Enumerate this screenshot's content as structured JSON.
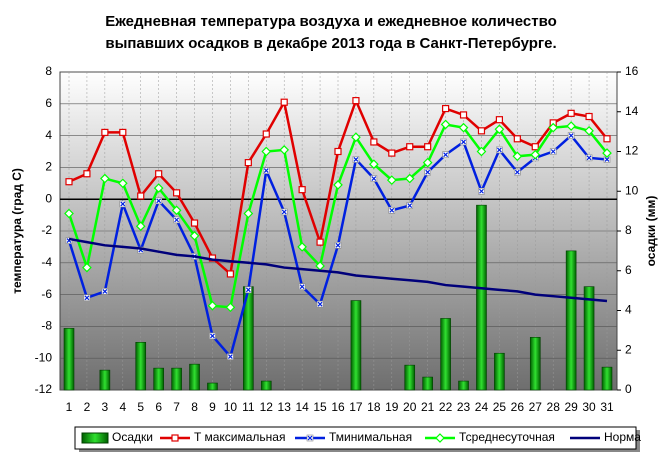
{
  "chart_data": {
    "type": "line",
    "title": [
      "Ежедневная температура воздуха и ежедневное количество",
      "выпавших осадков в декабре 2013 года в Санкт-Петербурге."
    ],
    "y_label": "температура (град С)",
    "y2_label": "осадки (мм)",
    "categories": [
      "1",
      "2",
      "3",
      "4",
      "5",
      "6",
      "7",
      "8",
      "9",
      "10",
      "11",
      "12",
      "13",
      "14",
      "15",
      "16",
      "17",
      "18",
      "19",
      "20",
      "21",
      "22",
      "23",
      "24",
      "25",
      "26",
      "27",
      "28",
      "29",
      "30",
      "31"
    ],
    "ylim": [
      -12,
      8
    ],
    "yticks": [
      -12,
      -10,
      -8,
      -6,
      -4,
      -2,
      0,
      2,
      4,
      6,
      8
    ],
    "y2lim": [
      0,
      16
    ],
    "y2ticks": [
      0,
      2,
      4,
      6,
      8,
      10,
      12,
      14,
      16
    ],
    "grid": true,
    "legend": "bottom",
    "series": [
      {
        "name": "Осадки",
        "type": "bar",
        "axis": "y2",
        "color": "#00b000",
        "values": [
          3.1,
          0,
          1.0,
          0,
          2.4,
          1.1,
          1.1,
          1.3,
          0.35,
          0,
          5.2,
          0.45,
          0,
          0,
          0,
          0,
          4.5,
          0,
          0,
          1.25,
          0.65,
          3.6,
          0.45,
          9.3,
          1.85,
          0,
          2.65,
          0,
          7.0,
          5.2,
          1.15
        ]
      },
      {
        "name": "T максимальная",
        "color": "#e00000",
        "marker": "square",
        "values": [
          1.1,
          1.6,
          4.2,
          4.2,
          0.2,
          1.6,
          0.4,
          -1.5,
          -3.7,
          -4.7,
          2.3,
          4.1,
          6.1,
          0.6,
          -2.7,
          3.0,
          6.2,
          3.6,
          2.9,
          3.3,
          3.3,
          5.7,
          5.3,
          4.3,
          5.0,
          3.8,
          3.3,
          4.8,
          5.4,
          5.2,
          3.8
        ]
      },
      {
        "name": "Тминимальная",
        "color": "#0020e0",
        "marker": "x",
        "values": [
          -2.6,
          -6.2,
          -5.8,
          -0.3,
          -3.2,
          -0.1,
          -1.3,
          -3.6,
          -8.6,
          -9.9,
          -5.7,
          1.8,
          -0.8,
          -5.5,
          -6.6,
          -2.9,
          2.5,
          1.3,
          -0.7,
          -0.4,
          1.7,
          2.8,
          3.6,
          0.5,
          3.1,
          1.7,
          2.6,
          3.0,
          4.0,
          2.6,
          2.5
        ]
      },
      {
        "name": "Тсреднесуточная",
        "color": "#00ff00",
        "marker": "diamond",
        "values": [
          -0.9,
          -4.3,
          1.3,
          1.0,
          -1.7,
          0.7,
          -0.7,
          -2.3,
          -6.7,
          -6.8,
          -0.9,
          3.0,
          3.1,
          -3.0,
          -4.2,
          0.9,
          3.9,
          2.2,
          1.2,
          1.3,
          2.3,
          4.7,
          4.5,
          3.0,
          4.4,
          2.7,
          2.8,
          4.5,
          4.6,
          4.3,
          2.9
        ]
      },
      {
        "name": "Норма",
        "color": "#00007a",
        "marker": "none",
        "values": [
          -2.5,
          -2.7,
          -2.9,
          -3.0,
          -3.1,
          -3.3,
          -3.5,
          -3.6,
          -3.8,
          -3.9,
          -4.0,
          -4.1,
          -4.3,
          -4.4,
          -4.5,
          -4.6,
          -4.8,
          -4.9,
          -5.0,
          -5.1,
          -5.2,
          -5.4,
          -5.5,
          -5.6,
          -5.7,
          -5.8,
          -6.0,
          -6.1,
          -6.2,
          -6.3,
          -6.4
        ]
      }
    ]
  }
}
